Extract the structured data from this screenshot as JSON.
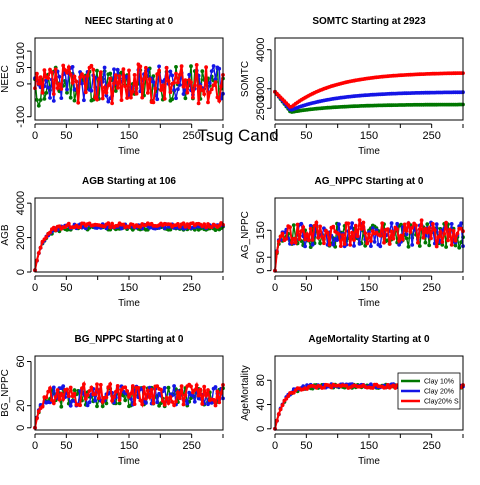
{
  "figure": {
    "suptitle": "Tsug Cand"
  },
  "series_colors": {
    "clay10": "#007700",
    "clay20": "#1515e6",
    "clay20s": "#ff0000"
  },
  "legend": {
    "items": [
      {
        "label": "Clay 10% ",
        "color": "#007700"
      },
      {
        "label": "Clay 20% ",
        "color": "#1515e6"
      },
      {
        "label": "Clay20% S",
        "color": "#ff0000"
      }
    ]
  },
  "chart_data": [
    {
      "type": "line",
      "title": "NEEC Starting at  0",
      "xlabel": "Time",
      "ylabel": "NEEC",
      "xlim": [
        0,
        300
      ],
      "ylim": [
        -110,
        140
      ],
      "xticks": [
        "0",
        "50",
        "150",
        "250"
      ],
      "xtick_values": [
        0,
        50,
        150,
        250
      ],
      "yticks": [
        "-100",
        "0",
        "50",
        "100"
      ],
      "ytick_values": [
        -100,
        0,
        50,
        100
      ],
      "series": [
        {
          "key": "clay10",
          "start": 0,
          "plateau": 0,
          "noise": 55,
          "seed": 11,
          "kind": "noisy"
        },
        {
          "key": "clay20",
          "start": 0,
          "plateau": 0,
          "noise": 55,
          "seed": 23,
          "kind": "noisy"
        },
        {
          "key": "clay20s",
          "start": 0,
          "plateau": 0,
          "noise": 60,
          "seed": 37,
          "kind": "noisy"
        }
      ]
    },
    {
      "type": "line",
      "title": "SOMTC Starting at  2923",
      "xlabel": "Time",
      "ylabel": "SOMTC",
      "xlim": [
        0,
        300
      ],
      "ylim": [
        2200,
        4300
      ],
      "xticks": [
        "0",
        "50",
        "150",
        "250"
      ],
      "xtick_values": [
        0,
        50,
        150,
        250
      ],
      "yticks": [
        "2500",
        "3000",
        "4000"
      ],
      "ytick_values": [
        2500,
        3000,
        4000
      ],
      "series": [
        {
          "key": "clay10",
          "start": 2923,
          "min": 2400,
          "end": 2600,
          "kind": "dip"
        },
        {
          "key": "clay20",
          "start": 2923,
          "min": 2450,
          "end": 2920,
          "kind": "dip"
        },
        {
          "key": "clay20s",
          "start": 2923,
          "min": 2520,
          "end": 3420,
          "kind": "dip"
        }
      ]
    },
    {
      "type": "line",
      "title": "AGB Starting at  106",
      "xlabel": "Time",
      "ylabel": "AGB",
      "xlim": [
        0,
        300
      ],
      "ylim": [
        0,
        4300
      ],
      "xticks": [
        "0",
        "50",
        "150",
        "250"
      ],
      "xtick_values": [
        0,
        50,
        150,
        250
      ],
      "yticks": [
        "0",
        "2000",
        "4000"
      ],
      "ytick_values": [
        0,
        2000,
        4000
      ],
      "series": [
        {
          "key": "clay10",
          "start": 106,
          "plateau": 2550,
          "noise": 120,
          "seed": 5,
          "rate": 0.085,
          "kind": "rise"
        },
        {
          "key": "clay20",
          "start": 106,
          "plateau": 2650,
          "noise": 130,
          "seed": 9,
          "rate": 0.08,
          "kind": "rise"
        },
        {
          "key": "clay20s",
          "start": 106,
          "plateau": 2720,
          "noise": 130,
          "seed": 13,
          "rate": 0.08,
          "kind": "rise"
        }
      ]
    },
    {
      "type": "line",
      "title": "AG_NPPC Starting at  0",
      "xlabel": "Time",
      "ylabel": "AG_NPPC",
      "xlim": [
        0,
        300
      ],
      "ylim": [
        -5,
        270
      ],
      "xticks": [
        "0",
        "50",
        "150",
        "250"
      ],
      "xtick_values": [
        0,
        50,
        150,
        250
      ],
      "yticks": [
        "0",
        "50",
        "150"
      ],
      "ytick_values": [
        0,
        50,
        150
      ],
      "series": [
        {
          "key": "clay10",
          "start": 0,
          "plateau": 130,
          "noise": 45,
          "seed": 17,
          "rate": 0.25,
          "kind": "rise"
        },
        {
          "key": "clay20",
          "start": 0,
          "plateau": 135,
          "noise": 45,
          "seed": 29,
          "rate": 0.25,
          "kind": "rise"
        },
        {
          "key": "clay20s",
          "start": 0,
          "plateau": 138,
          "noise": 50,
          "seed": 41,
          "rate": 0.25,
          "kind": "rise"
        }
      ]
    },
    {
      "type": "line",
      "title": "BG_NPPC Starting at  0",
      "xlabel": "Time",
      "ylabel": "BG_NPPC",
      "xlim": [
        0,
        300
      ],
      "ylim": [
        -2,
        65
      ],
      "xticks": [
        "0",
        "50",
        "150",
        "250"
      ],
      "xtick_values": [
        0,
        50,
        150,
        250
      ],
      "yticks": [
        "0",
        "20",
        "60"
      ],
      "ytick_values": [
        0,
        20,
        60
      ],
      "series": [
        {
          "key": "clay10",
          "start": 0,
          "plateau": 28,
          "noise": 9,
          "seed": 3,
          "rate": 0.12,
          "kind": "rise"
        },
        {
          "key": "clay20",
          "start": 0,
          "plateau": 29,
          "noise": 9,
          "seed": 19,
          "rate": 0.12,
          "kind": "rise"
        },
        {
          "key": "clay20s",
          "start": 0,
          "plateau": 30,
          "noise": 10,
          "seed": 31,
          "rate": 0.12,
          "kind": "rise"
        }
      ]
    },
    {
      "type": "line",
      "title": "AgeMortality Starting at  0",
      "xlabel": "Time",
      "ylabel": "AgeMortality",
      "xlim": [
        0,
        300
      ],
      "ylim": [
        -2,
        120
      ],
      "xticks": [
        "0",
        "50",
        "150",
        "250"
      ],
      "xtick_values": [
        0,
        50,
        150,
        250
      ],
      "yticks": [
        "0",
        "40",
        "80"
      ],
      "ytick_values": [
        0,
        40,
        80
      ],
      "series": [
        {
          "key": "clay10",
          "start": 0,
          "plateau": 70,
          "noise": 3,
          "seed": 7,
          "rate": 0.07,
          "kind": "rise"
        },
        {
          "key": "clay20",
          "start": 0,
          "plateau": 71,
          "noise": 3,
          "seed": 21,
          "rate": 0.07,
          "kind": "rise"
        },
        {
          "key": "clay20s",
          "start": 0,
          "plateau": 70,
          "noise": 3,
          "seed": 33,
          "rate": 0.07,
          "kind": "rise"
        }
      ]
    }
  ]
}
